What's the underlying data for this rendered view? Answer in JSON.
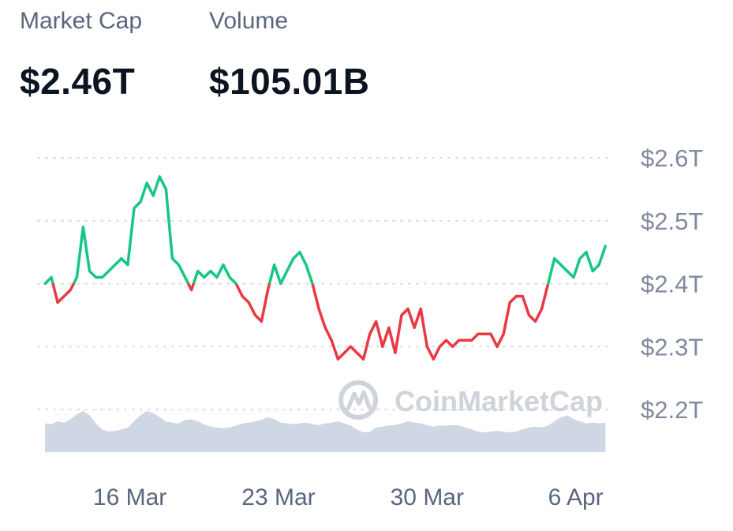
{
  "stats": {
    "market_cap": {
      "label": "Market Cap",
      "value": "$2.46T"
    },
    "volume": {
      "label": "Volume",
      "value": "$105.01B"
    }
  },
  "watermark": "CoinMarketCap",
  "colors": {
    "up": "#16c784",
    "down": "#ea3943",
    "volume": "#cfd6e4",
    "grid": "#d9dde3",
    "watermark": "#cfd3da"
  },
  "chart_data": {
    "type": "line",
    "baseline": 2.4,
    "ylim": [
      2.2,
      2.6
    ],
    "ytick_values": [
      2.6,
      2.5,
      2.4,
      2.3,
      2.2
    ],
    "yticks": [
      "$2.6T",
      "$2.5T",
      "$2.4T",
      "$2.3T",
      "$2.2T"
    ],
    "xlim": [
      12.0,
      38.5
    ],
    "xtick_values": [
      16,
      23,
      30,
      37
    ],
    "xticks": [
      "16 Mar",
      "23 Mar",
      "30 Mar",
      "6 Apr"
    ],
    "series": [
      {
        "x": [
          12.0,
          12.3,
          12.6,
          12.9,
          13.2,
          13.5,
          13.8,
          14.1,
          14.4,
          14.7,
          15.0,
          15.3,
          15.6,
          15.9,
          16.2,
          16.5,
          16.8,
          17.1,
          17.4,
          17.7,
          18.0,
          18.3,
          18.6,
          18.9,
          19.2,
          19.5,
          19.8,
          20.1,
          20.4,
          20.7,
          21.0,
          21.3,
          21.6,
          21.9,
          22.2,
          22.5,
          22.8,
          23.1,
          23.4,
          23.7,
          24.0,
          24.3,
          24.6,
          24.9,
          25.2,
          25.5,
          25.8,
          26.1,
          26.4,
          26.7,
          27.0,
          27.3,
          27.6,
          27.9,
          28.2,
          28.5,
          28.8,
          29.1,
          29.4,
          29.7,
          30.0,
          30.3,
          30.6,
          30.9,
          31.2,
          31.5,
          31.8,
          32.1,
          32.4,
          32.7,
          33.0,
          33.3,
          33.6,
          33.9,
          34.2,
          34.5,
          34.8,
          35.1,
          35.4,
          35.7,
          36.0,
          36.3,
          36.6,
          36.9,
          37.2,
          37.5,
          37.8,
          38.1,
          38.4
        ],
        "y": [
          2.4,
          2.41,
          2.37,
          2.38,
          2.39,
          2.41,
          2.49,
          2.42,
          2.41,
          2.41,
          2.42,
          2.43,
          2.44,
          2.43,
          2.52,
          2.53,
          2.56,
          2.54,
          2.57,
          2.55,
          2.44,
          2.43,
          2.41,
          2.39,
          2.42,
          2.41,
          2.42,
          2.41,
          2.43,
          2.41,
          2.4,
          2.38,
          2.37,
          2.35,
          2.34,
          2.39,
          2.43,
          2.4,
          2.42,
          2.44,
          2.45,
          2.43,
          2.4,
          2.36,
          2.33,
          2.31,
          2.28,
          2.29,
          2.3,
          2.29,
          2.28,
          2.32,
          2.34,
          2.3,
          2.33,
          2.29,
          2.35,
          2.36,
          2.33,
          2.36,
          2.3,
          2.28,
          2.3,
          2.31,
          2.3,
          2.31,
          2.31,
          2.31,
          2.32,
          2.32,
          2.32,
          2.3,
          2.32,
          2.37,
          2.38,
          2.38,
          2.35,
          2.34,
          2.36,
          2.4,
          2.44,
          2.43,
          2.42,
          2.41,
          2.44,
          2.45,
          2.42,
          2.43,
          2.46
        ]
      }
    ],
    "volume": [
      0.7,
      0.68,
      0.75,
      0.72,
      0.8,
      0.92,
      1.0,
      0.9,
      0.7,
      0.55,
      0.5,
      0.52,
      0.55,
      0.6,
      0.75,
      0.9,
      1.0,
      0.95,
      0.85,
      0.75,
      0.72,
      0.7,
      0.78,
      0.8,
      0.75,
      0.68,
      0.62,
      0.6,
      0.58,
      0.6,
      0.65,
      0.7,
      0.72,
      0.75,
      0.78,
      0.85,
      0.8,
      0.72,
      0.7,
      0.68,
      0.7,
      0.72,
      0.68,
      0.66,
      0.7,
      0.72,
      0.75,
      0.7,
      0.65,
      0.55,
      0.48,
      0.5,
      0.6,
      0.62,
      0.65,
      0.66,
      0.7,
      0.75,
      0.72,
      0.7,
      0.66,
      0.62,
      0.65,
      0.64,
      0.66,
      0.65,
      0.6,
      0.55,
      0.5,
      0.48,
      0.5,
      0.52,
      0.5,
      0.48,
      0.5,
      0.55,
      0.6,
      0.62,
      0.6,
      0.65,
      0.75,
      0.85,
      0.9,
      0.8,
      0.75,
      0.7,
      0.72,
      0.7,
      0.72
    ]
  }
}
